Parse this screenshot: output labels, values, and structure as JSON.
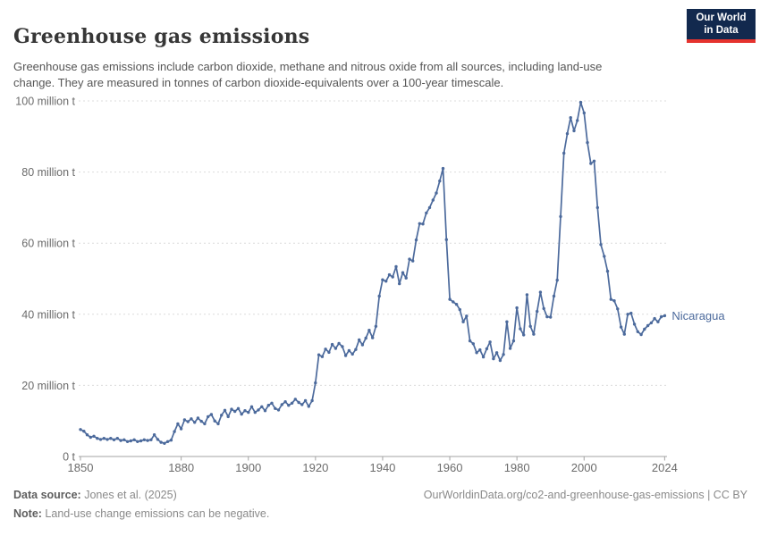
{
  "header": {
    "title": "Greenhouse gas emissions",
    "subtitle": "Greenhouse gas emissions include carbon dioxide, methane and nitrous oxide from all sources, including land-use change. They are measured in tonnes of carbon dioxide-equivalents over a 100-year timescale.",
    "logo": {
      "line1": "Our World",
      "line2": "in Data"
    }
  },
  "chart_data": {
    "type": "line",
    "title": "Greenhouse gas emissions",
    "unit": "million t",
    "xlim": [
      1850,
      2024
    ],
    "ylim": [
      0,
      100
    ],
    "grid": "horizontal-dashed",
    "legend_position": "end-of-line-label",
    "x_ticks": [
      1850,
      1880,
      1900,
      1920,
      1940,
      1960,
      1980,
      2000,
      2024
    ],
    "y_ticks": [
      {
        "value": 0,
        "label": "0 t"
      },
      {
        "value": 20,
        "label": "20 million t"
      },
      {
        "value": 40,
        "label": "40 million t"
      },
      {
        "value": 60,
        "label": "60 million t"
      },
      {
        "value": 80,
        "label": "80 million t"
      },
      {
        "value": 100,
        "label": "100 million t"
      }
    ],
    "series": [
      {
        "name": "Nicaragua",
        "color": "#4C6A9C",
        "start_year": 1850,
        "end_year": 2024,
        "values": [
          7.6,
          7.1,
          6.1,
          5.4,
          5.7,
          5.1,
          4.8,
          5.1,
          4.8,
          5.1,
          4.7,
          5.1,
          4.5,
          4.7,
          4.2,
          4.4,
          4.7,
          4.2,
          4.4,
          4.7,
          4.5,
          4.7,
          6.1,
          4.8,
          4.0,
          3.7,
          4.2,
          4.6,
          7.0,
          9.2,
          7.8,
          10.3,
          9.8,
          10.6,
          9.6,
          10.8,
          9.9,
          9.2,
          11.2,
          11.8,
          10.0,
          9.2,
          11.6,
          13.0,
          11.2,
          13.3,
          12.7,
          13.5,
          11.9,
          12.9,
          12.4,
          14.0,
          12.4,
          13.1,
          14.0,
          12.9,
          14.4,
          15.0,
          13.5,
          13.1,
          14.6,
          15.4,
          14.4,
          15.0,
          16.1,
          15.2,
          14.6,
          15.7,
          14.1,
          15.7,
          20.7,
          28.6,
          28.1,
          30.2,
          29.3,
          31.5,
          30.4,
          31.8,
          30.9,
          28.4,
          29.8,
          28.8,
          30.1,
          32.8,
          31.4,
          33.3,
          35.5,
          33.4,
          36.6,
          45.1,
          49.7,
          49.3,
          51.1,
          50.5,
          53.4,
          48.6,
          51.7,
          50.2,
          55.5,
          55.0,
          60.9,
          65.5,
          65.4,
          68.5,
          70.0,
          72.1,
          74.1,
          77.5,
          81.0,
          61.0,
          44.2,
          43.5,
          42.8,
          41.3,
          37.9,
          39.5,
          32.5,
          31.7,
          29.2,
          30.0,
          28.0,
          30.3,
          32.2,
          27.5,
          29.2,
          27.0,
          28.7,
          37.9,
          30.4,
          32.5,
          41.8,
          35.9,
          34.2,
          45.5,
          36.6,
          34.4,
          40.8,
          46.2,
          41.6,
          39.3,
          39.2,
          45.1,
          49.6,
          67.5,
          85.3,
          90.8,
          95.3,
          91.6,
          94.5,
          99.6,
          96.6,
          88.3,
          82.4,
          83.1,
          70.0,
          59.6,
          56.3,
          52.1,
          44.2,
          43.8,
          41.5,
          36.4,
          34.4,
          40.0,
          40.3,
          37.2,
          35.1,
          34.3,
          35.8,
          36.8,
          37.6,
          38.8,
          37.9,
          39.3,
          39.6
        ]
      }
    ]
  },
  "footer": {
    "data_source_label": "Data source:",
    "data_source_value": " Jones et al. (2025)",
    "note_label": "Note:",
    "note_value": " Land-use change emissions can be negative.",
    "cc_text": "OurWorldinData.org/co2-and-greenhouse-gas-emissions | CC BY"
  },
  "colors": {
    "series_blue": "#4C6A9C",
    "logo_navy": "#12294E",
    "logo_red": "#E5332E",
    "gridline": "#dcdcdc",
    "axis": "#a3a3a3",
    "tick_text": "#6b6b6b"
  }
}
